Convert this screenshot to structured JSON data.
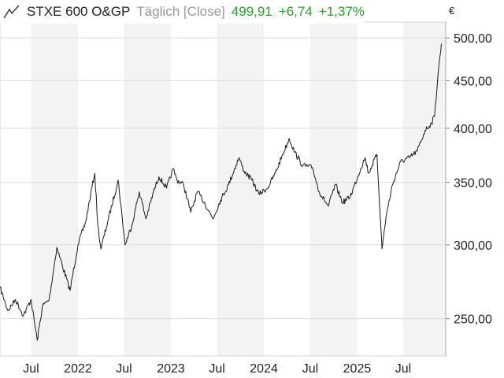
{
  "header": {
    "icon": "line-chart-icon",
    "name": "STXE 600 O&GP",
    "mode": "Täglich [Close]",
    "last": "499,91",
    "change": "+6,74",
    "change_pct": "+1,37%",
    "up_color": "#2aa02a"
  },
  "currency": "€",
  "chart_data": {
    "type": "line",
    "title": "STXE 600 O&GP",
    "ylabel": "€",
    "xlabel": "",
    "y_scale": "log",
    "ylim": [
      228,
      520
    ],
    "y_ticks": [
      250,
      300,
      350,
      400,
      450,
      500
    ],
    "y_tick_labels": [
      "250,00",
      "300,00",
      "350,00",
      "400,00",
      "450,00",
      "500,00"
    ],
    "xlim": [
      "2021-03-01",
      "2025-12-15"
    ],
    "x_tick_labels": [
      {
        "date": "2021-07-01",
        "label": "Jul"
      },
      {
        "date": "2022-01-01",
        "label": "2022"
      },
      {
        "date": "2022-07-01",
        "label": "Jul"
      },
      {
        "date": "2023-01-01",
        "label": "2023"
      },
      {
        "date": "2023-07-01",
        "label": "Jul"
      },
      {
        "date": "2024-01-01",
        "label": "2024"
      },
      {
        "date": "2024-07-01",
        "label": "Jul"
      },
      {
        "date": "2025-01-01",
        "label": "2025"
      },
      {
        "date": "2025-07-01",
        "label": "Jul"
      }
    ],
    "grid": true,
    "series": [
      {
        "values": [
          {
            "x": "2021-03-01",
            "y": 270
          },
          {
            "x": "2021-04-01",
            "y": 255
          },
          {
            "x": "2021-05-01",
            "y": 262
          },
          {
            "x": "2021-06-01",
            "y": 252
          },
          {
            "x": "2021-07-01",
            "y": 262
          },
          {
            "x": "2021-07-25",
            "y": 237
          },
          {
            "x": "2021-08-15",
            "y": 258
          },
          {
            "x": "2021-09-10",
            "y": 262
          },
          {
            "x": "2021-10-10",
            "y": 298
          },
          {
            "x": "2021-11-01",
            "y": 285
          },
          {
            "x": "2021-12-01",
            "y": 268
          },
          {
            "x": "2022-01-01",
            "y": 300
          },
          {
            "x": "2022-02-01",
            "y": 318
          },
          {
            "x": "2022-02-20",
            "y": 340
          },
          {
            "x": "2022-03-08",
            "y": 358
          },
          {
            "x": "2022-03-20",
            "y": 315
          },
          {
            "x": "2022-04-01",
            "y": 297
          },
          {
            "x": "2022-05-01",
            "y": 320
          },
          {
            "x": "2022-06-08",
            "y": 352
          },
          {
            "x": "2022-07-05",
            "y": 300
          },
          {
            "x": "2022-08-01",
            "y": 315
          },
          {
            "x": "2022-08-30",
            "y": 342
          },
          {
            "x": "2022-09-25",
            "y": 320
          },
          {
            "x": "2022-10-25",
            "y": 342
          },
          {
            "x": "2022-11-15",
            "y": 355
          },
          {
            "x": "2022-12-15",
            "y": 345
          },
          {
            "x": "2023-01-10",
            "y": 362
          },
          {
            "x": "2023-01-25",
            "y": 352
          },
          {
            "x": "2023-02-20",
            "y": 348
          },
          {
            "x": "2023-03-20",
            "y": 325
          },
          {
            "x": "2023-04-15",
            "y": 342
          },
          {
            "x": "2023-05-15",
            "y": 332
          },
          {
            "x": "2023-06-15",
            "y": 320
          },
          {
            "x": "2023-07-15",
            "y": 335
          },
          {
            "x": "2023-08-15",
            "y": 348
          },
          {
            "x": "2023-09-25",
            "y": 372
          },
          {
            "x": "2023-10-15",
            "y": 360
          },
          {
            "x": "2023-11-15",
            "y": 352
          },
          {
            "x": "2023-12-12",
            "y": 340
          },
          {
            "x": "2024-01-15",
            "y": 345
          },
          {
            "x": "2024-02-15",
            "y": 358
          },
          {
            "x": "2024-03-15",
            "y": 375
          },
          {
            "x": "2024-04-10",
            "y": 390
          },
          {
            "x": "2024-05-01",
            "y": 377
          },
          {
            "x": "2024-06-01",
            "y": 365
          },
          {
            "x": "2024-07-10",
            "y": 363
          },
          {
            "x": "2024-08-05",
            "y": 342
          },
          {
            "x": "2024-09-10",
            "y": 330
          },
          {
            "x": "2024-10-08",
            "y": 348
          },
          {
            "x": "2024-11-05",
            "y": 333
          },
          {
            "x": "2024-12-05",
            "y": 338
          },
          {
            "x": "2025-01-15",
            "y": 362
          },
          {
            "x": "2025-02-01",
            "y": 372
          },
          {
            "x": "2025-02-15",
            "y": 358
          },
          {
            "x": "2025-03-01",
            "y": 365
          },
          {
            "x": "2025-03-20",
            "y": 375
          },
          {
            "x": "2025-04-09",
            "y": 297
          },
          {
            "x": "2025-04-25",
            "y": 322
          },
          {
            "x": "2025-05-20",
            "y": 348
          },
          {
            "x": "2025-06-20",
            "y": 368
          },
          {
            "x": "2025-07-25",
            "y": 372
          },
          {
            "x": "2025-08-25",
            "y": 378
          },
          {
            "x": "2025-09-25",
            "y": 398
          },
          {
            "x": "2025-10-20",
            "y": 405
          },
          {
            "x": "2025-11-01",
            "y": 412
          },
          {
            "x": "2025-11-15",
            "y": 458
          },
          {
            "x": "2025-11-28",
            "y": 493
          }
        ]
      }
    ]
  }
}
